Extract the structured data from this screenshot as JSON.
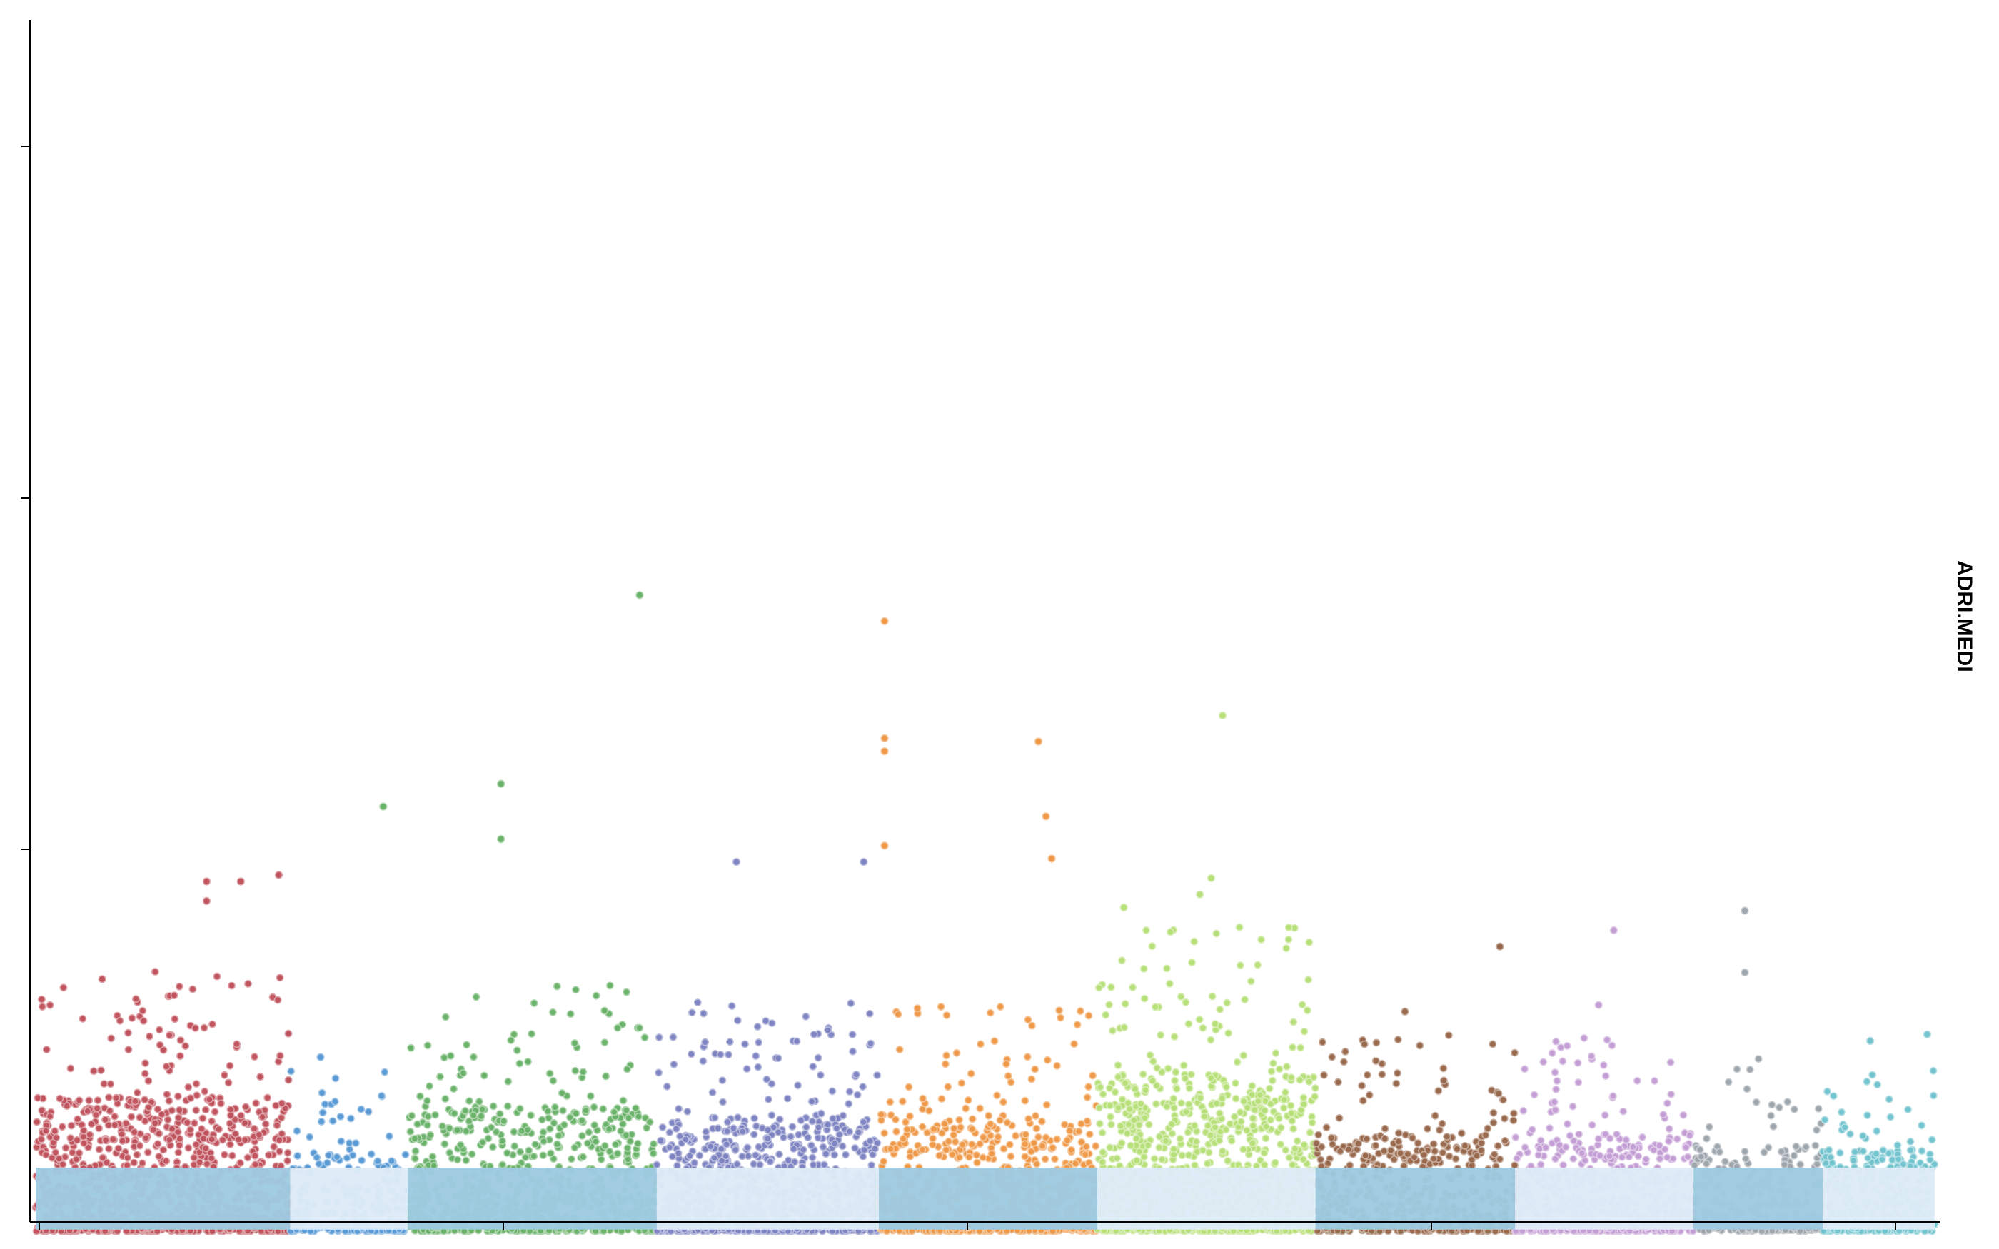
{
  "chart_data": {
    "type": "scatter",
    "title": "",
    "xlabel": "",
    "ylabel": "",
    "facet_label": "ADRI.MEDI",
    "x_ticks": [
      "",
      "",
      "",
      "",
      ""
    ],
    "y_ticks": [
      "",
      "",
      ""
    ],
    "xlim": [
      0,
      100
    ],
    "ylim": [
      0,
      34
    ],
    "grid": false,
    "legend": "none",
    "band_colors": [
      "#9ecae1",
      "#deebf7"
    ],
    "groups": [
      {
        "start": 0.0,
        "end": 13.4,
        "color": "#c1555f",
        "density": 1.1,
        "tailMax": 7.5,
        "peaks": [
          [
            9.0,
            10.2
          ],
          [
            9.0,
            9.6
          ],
          [
            10.8,
            10.2
          ],
          [
            12.8,
            10.4
          ],
          [
            3.5,
            7.2
          ]
        ]
      },
      {
        "start": 13.4,
        "end": 19.6,
        "color": "#5b9bd5",
        "density": 0.5,
        "tailMax": 4.4,
        "peaks": [
          [
            15.0,
            4.8
          ]
        ]
      },
      {
        "start": 19.6,
        "end": 32.7,
        "color": "#6bb36b",
        "density": 0.8,
        "tailMax": 7.0,
        "peaks": [
          [
            18.3,
            12.5
          ],
          [
            24.5,
            11.5
          ],
          [
            24.5,
            13.2
          ],
          [
            31.8,
            19.0
          ]
        ]
      },
      {
        "start": 32.7,
        "end": 44.4,
        "color": "#7f85c2",
        "density": 1.0,
        "tailMax": 6.5,
        "peaks": [
          [
            36.9,
            10.8
          ],
          [
            43.6,
            10.8
          ]
        ]
      },
      {
        "start": 44.4,
        "end": 55.9,
        "color": "#ef9a4a",
        "density": 0.9,
        "tailMax": 6.5,
        "peaks": [
          [
            44.7,
            18.2
          ],
          [
            44.7,
            14.6
          ],
          [
            44.7,
            14.2
          ],
          [
            44.7,
            11.3
          ],
          [
            52.8,
            14.5
          ],
          [
            53.2,
            12.2
          ],
          [
            53.5,
            10.9
          ]
        ]
      },
      {
        "start": 55.9,
        "end": 67.4,
        "color": "#b8e07a",
        "density": 1.2,
        "tailMax": 8.8,
        "peaks": [
          [
            62.5,
            15.3
          ],
          [
            61.9,
            10.3
          ],
          [
            61.3,
            9.8
          ],
          [
            57.3,
            9.4
          ]
        ]
      },
      {
        "start": 67.4,
        "end": 77.9,
        "color": "#9a6a4e",
        "density": 0.7,
        "tailMax": 5.5,
        "peaks": [
          [
            77.1,
            8.2
          ],
          [
            72.1,
            6.2
          ]
        ]
      },
      {
        "start": 77.9,
        "end": 87.3,
        "color": "#c49fd6",
        "density": 0.8,
        "tailMax": 5.5,
        "peaks": [
          [
            83.1,
            8.7
          ],
          [
            82.3,
            6.4
          ]
        ]
      },
      {
        "start": 87.3,
        "end": 94.1,
        "color": "#9ea6ad",
        "density": 0.5,
        "tailMax": 4.8,
        "peaks": [
          [
            90.0,
            9.3
          ],
          [
            90.0,
            7.4
          ]
        ]
      },
      {
        "start": 94.1,
        "end": 100.0,
        "color": "#74c4cf",
        "density": 0.8,
        "tailMax": 4.5,
        "peaks": [
          [
            99.6,
            5.5
          ],
          [
            96.6,
            5.3
          ]
        ]
      }
    ]
  }
}
